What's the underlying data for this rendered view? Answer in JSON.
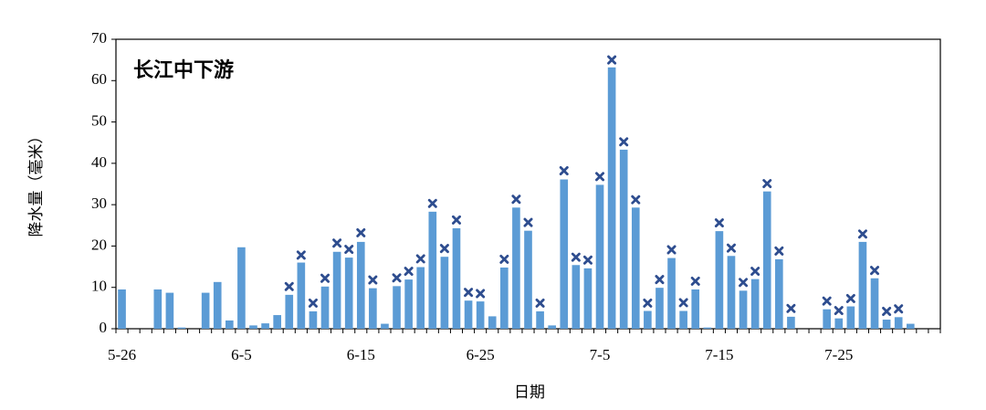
{
  "chart_data": {
    "type": "bar",
    "title": "长江中下游",
    "x_label": "日期",
    "y_label": "降水量（毫米）",
    "categories": [
      "5-26",
      null,
      null,
      null,
      null,
      null,
      null,
      null,
      null,
      null,
      "6-5",
      null,
      null,
      null,
      null,
      null,
      null,
      null,
      null,
      null,
      "6-15",
      null,
      null,
      null,
      null,
      null,
      null,
      null,
      null,
      null,
      "6-25",
      null,
      null,
      null,
      null,
      null,
      null,
      null,
      null,
      null,
      "7-5",
      null,
      null,
      null,
      null,
      null,
      null,
      null,
      null,
      null,
      "7-15",
      null,
      null,
      null,
      null,
      null,
      null,
      null,
      null,
      null,
      "7-25",
      null,
      null,
      null,
      null,
      null,
      null,
      null,
      null
    ],
    "series": [
      {
        "type": "bar",
        "color": "#5b9bd5",
        "values": [
          9.5,
          0,
          0,
          9.5,
          8.7,
          0.3,
          0,
          8.7,
          11.3,
          2,
          19.7,
          0.8,
          1.3,
          3.3,
          8.2,
          16,
          4.2,
          10.2,
          18.6,
          17.2,
          21,
          9.8,
          1.2,
          10.3,
          11.9,
          14.9,
          28.3,
          17.4,
          24.3,
          6.8,
          6.6,
          3,
          14.8,
          29.3,
          23.7,
          4.2,
          0.8,
          36.1,
          15.4,
          14.6,
          34.8,
          63.2,
          43.3,
          29.3,
          4.3,
          9.9,
          17.1,
          4.3,
          9.5,
          0.3,
          23.6,
          17.6,
          9.2,
          12,
          33.2,
          16.8,
          2.9,
          0,
          0,
          4.7,
          2.5,
          5.4,
          21,
          12.2,
          2.2,
          2.8,
          1.2,
          0,
          0
        ]
      },
      {
        "type": "scatter",
        "marker": "x",
        "color": "#2e4d8f",
        "values": [
          null,
          null,
          null,
          null,
          null,
          null,
          null,
          null,
          null,
          null,
          null,
          null,
          null,
          null,
          10.2,
          17.8,
          6.2,
          12.2,
          20.7,
          19.2,
          23.2,
          11.8,
          null,
          12.3,
          13.9,
          16.9,
          30.3,
          19.4,
          26.3,
          8.8,
          8.5,
          null,
          16.8,
          31.3,
          25.7,
          6.2,
          null,
          38.2,
          17.3,
          16.6,
          36.8,
          65,
          45.2,
          31.2,
          6.2,
          11.9,
          19.1,
          6.3,
          11.5,
          null,
          25.6,
          19.5,
          11.2,
          13.9,
          35.1,
          18.8,
          4.9,
          null,
          null,
          6.7,
          4.4,
          7.3,
          22.9,
          14.1,
          4.2,
          4.8,
          null,
          null,
          null
        ]
      }
    ],
    "ylim": [
      0,
      70
    ],
    "yticks": [
      0,
      10,
      20,
      30,
      40,
      50,
      60,
      70
    ],
    "grid": false
  }
}
